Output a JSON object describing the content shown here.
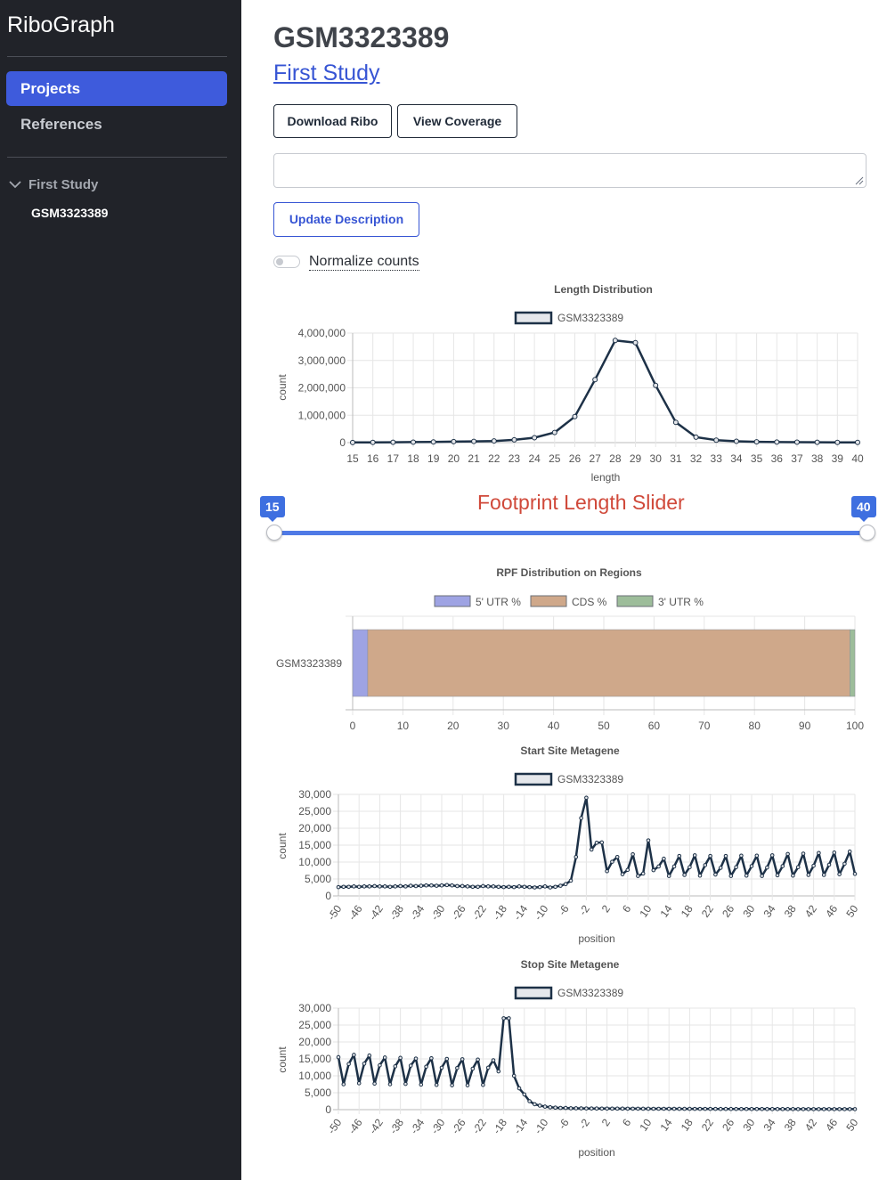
{
  "app": {
    "name": "RiboGraph"
  },
  "sidebar": {
    "nav": [
      {
        "label": "Projects",
        "active": true
      },
      {
        "label": "References",
        "active": false
      }
    ],
    "tree": {
      "parent": "First Study",
      "child": "GSM3323389"
    }
  },
  "main": {
    "title": "GSM3323389",
    "study_link": "First Study",
    "buttons": {
      "download": "Download Ribo",
      "coverage": "View Coverage",
      "update": "Update Description"
    },
    "description_value": "",
    "normalize_label": "Normalize counts",
    "normalize_on": false,
    "slider": {
      "title": "Footprint Length Slider",
      "min": "15",
      "max": "40",
      "min_value": 15,
      "max_value": 40,
      "range_min": 15,
      "range_max": 40
    }
  },
  "colors": {
    "accent": "#3e5bdc",
    "sidebar": "#212329",
    "line": "#1d3147",
    "utr5": "#9ea3e3",
    "cds": "#cfa88a",
    "utr3": "#9dbd9a",
    "slider_title": "#d0493a"
  },
  "chart_data": [
    {
      "id": "length",
      "type": "line",
      "title": "Length Distribution",
      "xlabel": "length",
      "ylabel": "count",
      "x": [
        15,
        16,
        17,
        18,
        19,
        20,
        21,
        22,
        23,
        24,
        25,
        26,
        27,
        28,
        29,
        30,
        31,
        32,
        33,
        34,
        35,
        36,
        37,
        38,
        39,
        40
      ],
      "xticks": [
        "15",
        "16",
        "17",
        "18",
        "19",
        "20",
        "21",
        "22",
        "23",
        "24",
        "25",
        "26",
        "27",
        "28",
        "29",
        "30",
        "31",
        "32",
        "33",
        "34",
        "35",
        "36",
        "37",
        "38",
        "39",
        "40"
      ],
      "yticks": [
        "0",
        "1,000,000",
        "2,000,000",
        "3,000,000",
        "4,000,000"
      ],
      "ylim": [
        0,
        4000000
      ],
      "grid": true,
      "legend": "top",
      "series": [
        {
          "name": "GSM3323389",
          "values": [
            5000,
            8000,
            12000,
            18000,
            25000,
            35000,
            45000,
            60000,
            100000,
            180000,
            370000,
            950000,
            2300000,
            3730000,
            3650000,
            2090000,
            740000,
            200000,
            90000,
            50000,
            30000,
            20000,
            15000,
            12000,
            10000,
            8000
          ]
        }
      ]
    },
    {
      "id": "rpf",
      "type": "bar",
      "orientation": "horizontal-stacked",
      "title": "RPF Distribution on Regions",
      "categories": [
        "GSM3323389"
      ],
      "xlim": [
        0,
        100
      ],
      "xticks": [
        "0",
        "10",
        "20",
        "30",
        "40",
        "50",
        "60",
        "70",
        "80",
        "90",
        "100"
      ],
      "grid": true,
      "legend": "top",
      "series": [
        {
          "name": "5' UTR %",
          "values": [
            3
          ]
        },
        {
          "name": "CDS %",
          "values": [
            96
          ]
        },
        {
          "name": "3' UTR %",
          "values": [
            1
          ]
        }
      ]
    },
    {
      "id": "start",
      "type": "line",
      "title": "Start Site Metagene",
      "xlabel": "position",
      "ylabel": "count",
      "xlim": [
        -50,
        50
      ],
      "ylim": [
        0,
        30000
      ],
      "yticks": [
        "0",
        "5,000",
        "10,000",
        "15,000",
        "20,000",
        "25,000",
        "30,000"
      ],
      "xticks": [
        "-50",
        "-46",
        "-42",
        "-38",
        "-34",
        "-30",
        "-26",
        "-22",
        "-18",
        "-14",
        "-10",
        "-6",
        "-2",
        "2",
        "6",
        "10",
        "14",
        "18",
        "22",
        "26",
        "30",
        "34",
        "38",
        "42",
        "46",
        "50"
      ],
      "grid": true,
      "legend": "top",
      "series": [
        {
          "name": "GSM3323389",
          "values": [
            2600,
            2700,
            2700,
            2800,
            2700,
            2800,
            2800,
            2900,
            2800,
            2800,
            2700,
            2800,
            2900,
            2800,
            3000,
            2900,
            3000,
            3100,
            3100,
            3000,
            3100,
            3200,
            3100,
            2900,
            2900,
            2800,
            2700,
            2700,
            2900,
            2800,
            2800,
            2700,
            2600,
            2700,
            2600,
            2800,
            2700,
            2600,
            2500,
            2600,
            2800,
            2500,
            2700,
            3000,
            3500,
            4500,
            11500,
            23000,
            29000,
            13700,
            15700,
            15800,
            7300,
            10100,
            11500,
            6400,
            7700,
            12300,
            5900,
            6600,
            16400,
            7600,
            8700,
            11000,
            5900,
            8700,
            11800,
            6200,
            8500,
            12000,
            6000,
            9100,
            11800,
            6300,
            8300,
            11800,
            5900,
            8500,
            11900,
            6000,
            8800,
            11900,
            5900,
            8400,
            12000,
            6100,
            8800,
            12400,
            6000,
            8500,
            12500,
            6200,
            8900,
            12700,
            6200,
            9200,
            12800,
            6400,
            9500,
            13100,
            6500
          ]
        }
      ]
    },
    {
      "id": "stop",
      "type": "line",
      "title": "Stop Site Metagene",
      "xlabel": "position",
      "ylabel": "count",
      "xlim": [
        -50,
        50
      ],
      "ylim": [
        0,
        30000
      ],
      "yticks": [
        "0",
        "5,000",
        "10,000",
        "15,000",
        "20,000",
        "25,000",
        "30,000"
      ],
      "xticks": [
        "-50",
        "-46",
        "-42",
        "-38",
        "-34",
        "-30",
        "-26",
        "-22",
        "-18",
        "-14",
        "-10",
        "-6",
        "-2",
        "2",
        "6",
        "10",
        "14",
        "18",
        "22",
        "26",
        "30",
        "34",
        "38",
        "42",
        "46",
        "50"
      ],
      "grid": true,
      "legend": "top",
      "series": [
        {
          "name": "GSM3323389",
          "values": [
            15500,
            7500,
            13500,
            16200,
            7800,
            13600,
            16000,
            7700,
            13100,
            15400,
            7500,
            12800,
            15300,
            7600,
            13000,
            15100,
            7400,
            12700,
            15200,
            7300,
            12400,
            15000,
            7200,
            12300,
            14900,
            7200,
            12100,
            14800,
            7300,
            12400,
            14600,
            11300,
            27000,
            27000,
            10000,
            6300,
            4500,
            2500,
            1600,
            1200,
            900,
            700,
            600,
            500,
            500,
            400,
            400,
            380,
            360,
            350,
            340,
            330,
            320,
            310,
            300,
            300,
            290,
            280,
            280,
            270,
            270,
            260,
            260,
            260,
            250,
            250,
            240,
            240,
            240,
            230,
            230,
            230,
            220,
            220,
            210,
            210,
            210,
            200,
            200,
            200,
            190,
            190,
            190,
            180,
            180,
            180,
            170,
            170,
            170,
            160,
            160,
            160,
            150,
            150,
            150,
            150,
            150,
            150,
            150,
            150,
            150
          ]
        }
      ]
    }
  ]
}
